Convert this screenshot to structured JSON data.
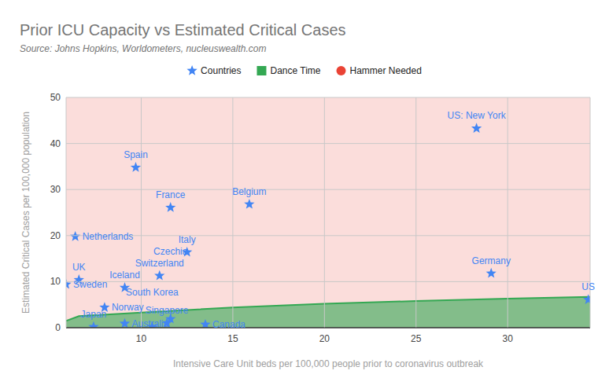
{
  "chart_data": {
    "type": "scatter",
    "title": "Prior ICU Capacity vs Estimated Critical Cases",
    "subtitle": "Source: Johns Hopkins, Worldometers, nucleuswealth.com",
    "x_label": "Intensive Care Unit beds per 100,000 people prior to coronavirus outbreak",
    "y_label": "Estimated Critical Cases per 100,000 population",
    "xlim": [
      5.9,
      34.5
    ],
    "ylim": [
      0,
      50
    ],
    "xticks": [
      10,
      15,
      20,
      25,
      30
    ],
    "yticks": [
      0,
      10,
      20,
      30,
      40,
      50
    ],
    "grid": true,
    "legend": "top",
    "series": [
      {
        "name": "Countries",
        "type": "scatter",
        "marker": "star",
        "color": "#4285f4",
        "labels": [
          "US: New York",
          "Spain",
          "France",
          "Belgium",
          "Netherlands",
          "Italy",
          "Switzerland",
          "Germany",
          "UK",
          "Sweden",
          "Iceland",
          "Norway",
          "US",
          "Japan",
          "Australia",
          "South Korea",
          "Singapore",
          "Czechia",
          "Canada"
        ],
        "x": [
          28.3,
          9.7,
          11.6,
          15.9,
          6.4,
          12.5,
          11.0,
          29.1,
          6.6,
          5.9,
          9.1,
          8.0,
          34.4,
          7.4,
          9.1,
          10.6,
          11.4,
          11.6,
          13.5
        ],
        "values": [
          43.3,
          34.8,
          26.1,
          26.8,
          19.8,
          16.4,
          11.3,
          11.8,
          10.4,
          9.4,
          8.7,
          4.4,
          6.1,
          0.2,
          0.9,
          0.2,
          1.0,
          1.9,
          0.7
        ]
      },
      {
        "name": "Dance Time",
        "type": "area",
        "marker": "square",
        "color": "#34a853",
        "x": [
          5.9,
          6.6,
          10,
          15,
          20,
          25,
          30,
          34.5
        ],
        "values": [
          1.5,
          2.5,
          3.3,
          4.4,
          5.2,
          5.8,
          6.3,
          6.7
        ]
      },
      {
        "name": "Hammer Needed",
        "type": "area",
        "marker": "circle",
        "color": "#ea4335",
        "x": [
          5.9,
          34.5
        ],
        "values": [
          50,
          50
        ]
      }
    ]
  }
}
